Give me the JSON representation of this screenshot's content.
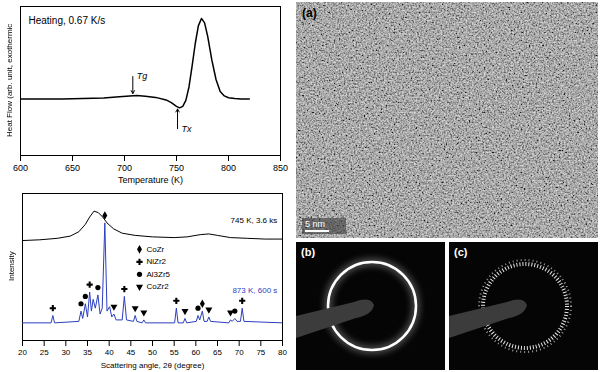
{
  "chart_data": [
    {
      "type": "line",
      "title": "Heating, 0.67 K/s",
      "xlabel": "Temperature (K)",
      "ylabel": "Heat Flow (arb. unit, exothermic",
      "x": [
        600,
        620,
        640,
        660,
        680,
        695,
        705,
        712,
        720,
        730,
        740,
        745,
        750,
        753,
        756,
        759,
        762,
        765,
        768,
        771,
        774,
        777,
        780,
        784,
        788,
        792,
        796,
        800,
        806,
        812,
        820
      ],
      "values": [
        38,
        38,
        38,
        38.2,
        38.6,
        39.4,
        40,
        40.2,
        39.8,
        39,
        37.3,
        35.5,
        33,
        32,
        33,
        37,
        46,
        60,
        75,
        87,
        92,
        89,
        80,
        64,
        51,
        43,
        40,
        38.8,
        38.2,
        38,
        38
      ],
      "color": "#000000",
      "xlim": [
        600,
        850
      ],
      "xticks": [
        600,
        650,
        700,
        750,
        800,
        850
      ],
      "ylim": [
        0,
        100
      ],
      "tick_labels": "x",
      "annotations": [
        {
          "text": "Tg",
          "x": 708,
          "y": 53
        },
        {
          "text": "Tx",
          "x": 751,
          "y": 18
        }
      ]
    },
    {
      "type": "line",
      "xlabel": "Scattering angle, 2θ (degree)",
      "ylabel": "Intensity",
      "xlim": [
        20,
        80
      ],
      "xticks": [
        20,
        25,
        30,
        35,
        40,
        45,
        50,
        55,
        60,
        65,
        70,
        75,
        80
      ],
      "ylim": [
        0,
        100
      ],
      "tick_labels": "x",
      "legend": "center",
      "series": [
        {
          "name": "745 K, 3.6 ks",
          "color": "#000000",
          "x": [
            20,
            24,
            28,
            31,
            33,
            34.5,
            35.5,
            36.5,
            37.5,
            38.5,
            39.5,
            41,
            43,
            46,
            50,
            55,
            58,
            61,
            63,
            65,
            68,
            72,
            76,
            80
          ],
          "values": [
            68,
            68.5,
            69.5,
            71,
            74,
            79,
            84,
            88,
            87,
            84,
            80,
            76,
            73,
            71.5,
            70.5,
            70,
            70.5,
            72,
            72.5,
            71.5,
            70,
            69.5,
            69,
            69
          ]
        },
        {
          "name": "873 K, 600 s",
          "color": "#2b3fbf",
          "x": [
            20,
            26.6,
            27,
            27.4,
            33,
            33.5,
            33.9,
            34.5,
            35,
            35.5,
            35.9,
            36.3,
            36.8,
            37.4,
            37.9,
            38.4,
            39,
            39.5,
            40.1,
            40.6,
            41.1,
            41.6,
            43,
            43.5,
            44,
            45.6,
            46,
            46.4,
            47.6,
            48,
            48.4,
            55.1,
            55.5,
            55.9,
            57.1,
            57.5,
            57.9,
            60.1,
            60.5,
            60.9,
            61.5,
            61.9,
            62.6,
            63,
            63.4,
            67.6,
            68,
            68.4,
            69,
            69.5,
            70.3,
            70.7,
            71.1,
            80
          ],
          "values": [
            12,
            12,
            17,
            12,
            13,
            20,
            15,
            25,
            16,
            33,
            20,
            28,
            22,
            31,
            18,
            22,
            80,
            20,
            23,
            16,
            18,
            14,
            14,
            30,
            14,
            13,
            17,
            13,
            12,
            14,
            12,
            12,
            22,
            12,
            12,
            15,
            12,
            13,
            17,
            14,
            20,
            13,
            13,
            16,
            13,
            12,
            14,
            13,
            15,
            13,
            13,
            22,
            13,
            12
          ]
        },
        {
          "name": "CoZr",
          "type": "scatter",
          "marker": "diamond",
          "color": "#000000",
          "x": [
            39,
            61.5
          ],
          "values": [
            85,
            25
          ]
        },
        {
          "name": "NiZr2",
          "type": "scatter",
          "marker": "cross",
          "color": "#000000",
          "x": [
            27,
            35.5,
            43.5,
            55.5,
            70.7
          ],
          "values": [
            22,
            38,
            35,
            27,
            27
          ]
        },
        {
          "name": "Al3Zr5",
          "type": "scatter",
          "marker": "circle",
          "color": "#000000",
          "x": [
            33.5,
            34.5,
            37.4,
            60.5,
            69
          ],
          "values": [
            25,
            30,
            36,
            22,
            20
          ]
        },
        {
          "name": "CoZr2",
          "type": "scatter",
          "marker": "triangle-down",
          "color": "#000000",
          "x": [
            41.1,
            46,
            48,
            57.5,
            63,
            68
          ],
          "values": [
            23,
            22,
            19,
            20,
            21,
            19
          ]
        }
      ]
    }
  ],
  "panels": [
    {
      "label": "(a)",
      "scale_bar": "5 nm"
    },
    {
      "label": "(b)"
    },
    {
      "label": "(c)"
    }
  ]
}
